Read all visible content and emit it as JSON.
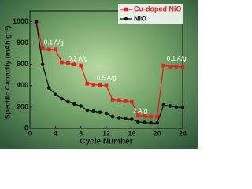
{
  "chart_data": {
    "type": "line",
    "x_label": "Cycle Number",
    "y_label": "Specific Capacity (mAh g⁻¹)",
    "x": [
      1,
      2,
      3,
      4,
      5,
      6,
      7,
      8,
      9,
      10,
      11,
      12,
      13,
      14,
      15,
      16,
      17,
      18,
      19,
      20,
      21,
      22,
      23,
      24
    ],
    "series": [
      {
        "name": "Cu-doped NiO",
        "color": "#e8201c",
        "marker": "square",
        "values": [
          1000,
          750,
          740,
          740,
          620,
          610,
          600,
          590,
          420,
          410,
          405,
          400,
          270,
          260,
          255,
          250,
          120,
          115,
          110,
          110,
          590,
          580,
          580,
          575
        ]
      },
      {
        "name": "NiO",
        "color": "#111111",
        "marker": "circle",
        "values": [
          1000,
          600,
          380,
          320,
          280,
          250,
          230,
          210,
          170,
          160,
          150,
          140,
          110,
          100,
          90,
          85,
          60,
          55,
          50,
          50,
          220,
          210,
          200,
          195
        ]
      }
    ],
    "annotations": [
      {
        "text": "0.1 A/g",
        "x": 2.2,
        "y": 800
      },
      {
        "text": "0.2 A/g",
        "x": 6,
        "y": 650
      },
      {
        "text": "0.5 A/g",
        "x": 10.5,
        "y": 470
      },
      {
        "text": "2 A/g",
        "x": 16.2,
        "y": 160
      },
      {
        "text": "0.1 A/g",
        "x": 21.5,
        "y": 650
      }
    ],
    "xlim": [
      0,
      24
    ],
    "xticks": [
      0,
      4,
      8,
      12,
      16,
      20,
      24
    ],
    "ylim": [
      0,
      1100
    ],
    "yticks": [
      0,
      200,
      400,
      600,
      800,
      1000
    ],
    "legend": "upper right"
  }
}
